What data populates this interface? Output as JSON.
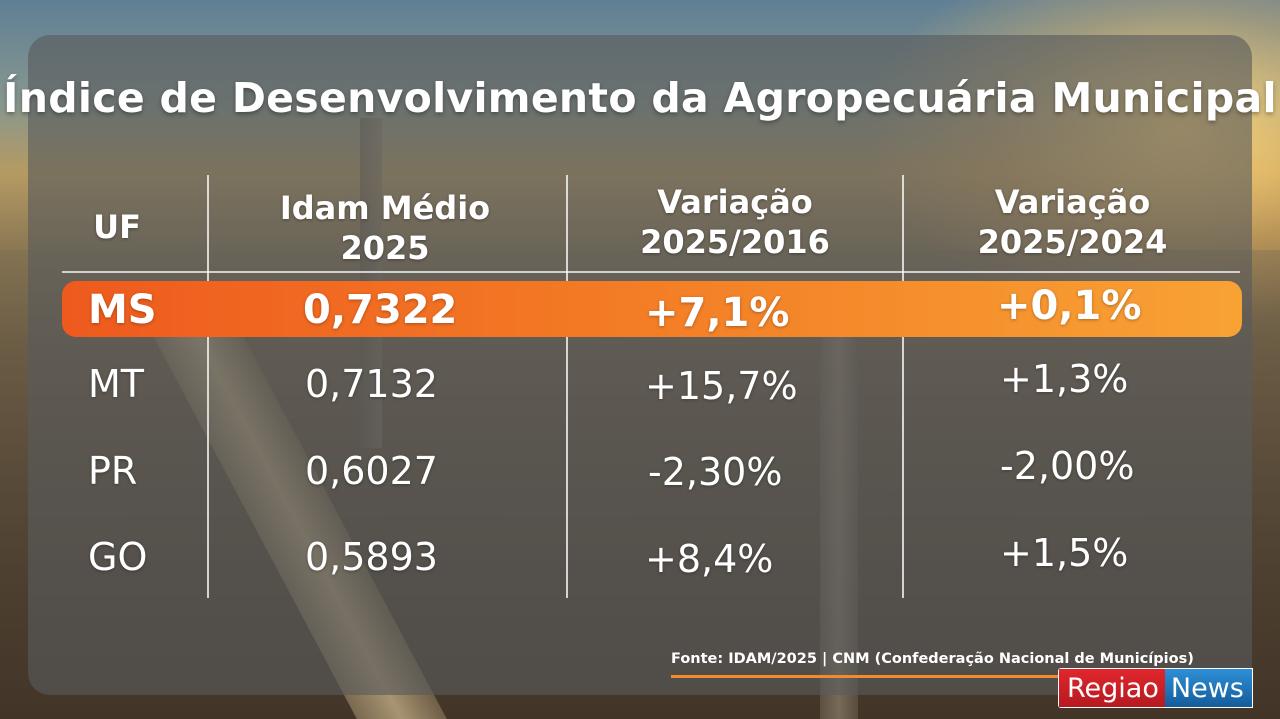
{
  "title": "Índice de Desenvolvimento da Agropecuária Municipal",
  "table": {
    "headers": [
      {
        "line1": "UF",
        "line2": ""
      },
      {
        "line1": "Idam Médio",
        "line2": "2025"
      },
      {
        "line1": "Variação",
        "line2": "2025/2016"
      },
      {
        "line1": "Variação",
        "line2": "2025/2024"
      }
    ],
    "rows": [
      {
        "uf": "MS",
        "idam": "0,7322",
        "var_2016": "+7,1%",
        "var_2024": "+0,1%",
        "highlighted": true
      },
      {
        "uf": "MT",
        "idam": "0,7132",
        "var_2016": "+15,7%",
        "var_2024": "+1,3%",
        "highlighted": false
      },
      {
        "uf": "PR",
        "idam": "0,6027",
        "var_2016": "-2,30%",
        "var_2024": "-2,00%",
        "highlighted": false
      },
      {
        "uf": "GO",
        "idam": "0,5893",
        "var_2016": "+8,4%",
        "var_2024": "+1,5%",
        "highlighted": false
      }
    ]
  },
  "source": "Fonte: IDAM/2025 | CNM (Confederação Nacional de Municípios)",
  "logo": {
    "part1": "Regiao",
    "part2": "News"
  },
  "colors": {
    "highlight_start": "#ee5a1e",
    "highlight_end": "#f8a234",
    "logo_red": "#e1262d",
    "logo_blue": "#2e8fd6"
  }
}
